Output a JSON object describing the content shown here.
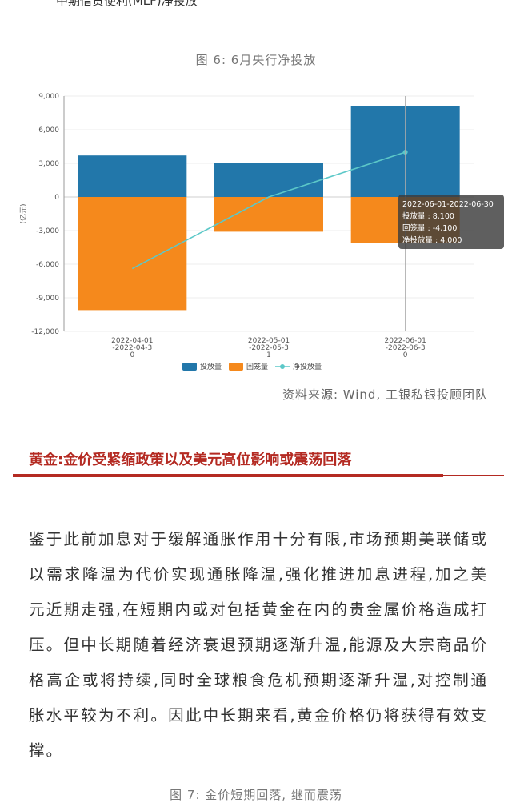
{
  "top_cut_text": "中期借贷便利(MLF)净投放",
  "figure": {
    "title": "图 6: 6月央行净投放",
    "source": "资料来源: Wind, 工银私银投顾团队"
  },
  "chart_data": {
    "type": "bar",
    "categories": [
      [
        "2022-04-01",
        "-2022-04-3",
        "0"
      ],
      [
        "2022-05-01",
        "-2022-05-3",
        "1"
      ],
      [
        "2022-06-01",
        "-2022-06-3",
        "0"
      ]
    ],
    "series": [
      {
        "name": "投放量",
        "type": "bar",
        "color": "#2277aa",
        "values": [
          3700,
          3000,
          8100
        ]
      },
      {
        "name": "回笼量",
        "type": "bar",
        "color": "#f5891c",
        "values": [
          -10100,
          -3100,
          -4100
        ]
      },
      {
        "name": "净投放量",
        "type": "line",
        "color": "#5cc8c8",
        "values": [
          -6400,
          0,
          4000
        ]
      }
    ],
    "ylabel": "(亿元)",
    "ylim": [
      -12000,
      9000
    ],
    "yticks": [
      9000,
      6000,
      3000,
      0,
      -3000,
      -6000,
      -9000,
      -12000
    ],
    "ytick_labels": [
      "9,000",
      "6,000",
      "3,000",
      "0",
      "-3,000",
      "-6,000",
      "-9,000",
      "-12,000"
    ],
    "legend_placement": "bottom-center",
    "tooltip": {
      "category_index": 2,
      "lines": [
        "2022-06-01-2022-06-30",
        "投放量 : 8,100",
        "回笼量 : -4,100",
        "净投放量 : 4,000"
      ]
    }
  },
  "section": {
    "heading": "黄金:金价受紧缩政策以及美元高位影响或震荡回落",
    "paragraph": "鉴于此前加息对于缓解通胀作用十分有限,市场预期美联储或以需求降温为代价实现通胀降温,强化推进加息进程,加之美元近期走强,在短期内或对包括黄金在内的贵金属价格造成打压。但中长期随着经济衰退预期逐渐升温,能源及大宗商品价格高企或将持续,同时全球粮食危机预期逐渐升温,对控制通胀水平较为不利。因此中长期来看,黄金价格仍将获得有效支撑。"
  },
  "next_figure_caption": "图 7: 金价短期回落, 继而震荡"
}
